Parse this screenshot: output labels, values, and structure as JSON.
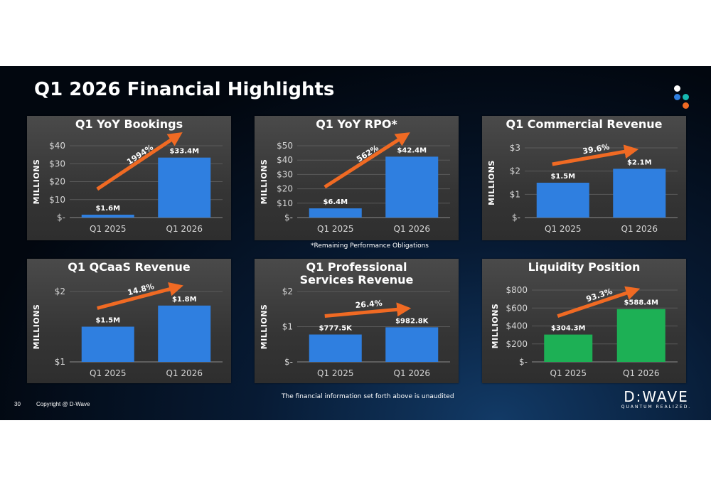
{
  "slide": {
    "title": "Q1 2026 Financial Highlights",
    "rpo_footnote": "*Remaining Performance Obligations",
    "unaudited_note": "The financial information set forth above is unaudited",
    "page_number": "30",
    "copyright": "Copyright @ D-Wave",
    "logo_text": "D:WAVE",
    "logo_tagline": "QUANTUM REALIZED.",
    "dot_colors": [
      "#ffffff",
      "#2f7fe0",
      "#16b8b0",
      "#f06a23"
    ],
    "blue": "#2f7fe0",
    "green": "#1db055",
    "arrow": "#f06a23"
  },
  "chart_data": [
    {
      "type": "bar",
      "title": "Q1 YoY Bookings",
      "ylabel": "MILLIONS",
      "categories": [
        "Q1 2025",
        "Q1 2026"
      ],
      "values": [
        1.6,
        33.4
      ],
      "data_labels": [
        "$1.6M",
        "$33.4M"
      ],
      "ylim": [
        0,
        40
      ],
      "yticks": [
        0,
        10,
        20,
        30,
        40
      ],
      "ytick_labels": [
        "$-",
        "$10",
        "$20",
        "$30",
        "$40"
      ],
      "growth_label": "1994%",
      "bar_color": "#2f7fe0"
    },
    {
      "type": "bar",
      "title": "Q1 YoY RPO*",
      "ylabel": "MILLIONS",
      "categories": [
        "Q1 2025",
        "Q1 2026"
      ],
      "values": [
        6.4,
        42.4
      ],
      "data_labels": [
        "$6.4M",
        "$42.4M"
      ],
      "ylim": [
        0,
        50
      ],
      "yticks": [
        0,
        10,
        20,
        30,
        40,
        50
      ],
      "ytick_labels": [
        "$-",
        "$10",
        "$20",
        "$30",
        "$40",
        "$50"
      ],
      "growth_label": "562%",
      "bar_color": "#2f7fe0"
    },
    {
      "type": "bar",
      "title": "Q1 Commercial Revenue",
      "ylabel": "MILLIONS",
      "categories": [
        "Q1 2025",
        "Q1 2026"
      ],
      "values": [
        1.5,
        2.1
      ],
      "data_labels": [
        "$1.5M",
        "$2.1M"
      ],
      "ylim": [
        0,
        3
      ],
      "yticks": [
        0,
        1,
        2,
        3
      ],
      "ytick_labels": [
        "$-",
        "$1",
        "$2",
        "$3"
      ],
      "growth_label": "39.6%",
      "bar_color": "#2f7fe0"
    },
    {
      "type": "bar",
      "title": "Q1 QCaaS Revenue",
      "ylabel": "MILLIONS",
      "categories": [
        "Q1 2025",
        "Q1 2026"
      ],
      "values": [
        1.5,
        1.8
      ],
      "data_labels": [
        "$1.5M",
        "$1.8M"
      ],
      "ylim": [
        1,
        2
      ],
      "yticks": [
        1,
        2
      ],
      "ytick_labels": [
        "$1",
        "$2"
      ],
      "growth_label": "14.8%",
      "bar_color": "#2f7fe0"
    },
    {
      "type": "bar",
      "title": "Q1 Professional Services Revenue",
      "ylabel": "MILLIONS",
      "categories": [
        "Q1 2025",
        "Q1 2026"
      ],
      "values": [
        0.7775,
        0.9828
      ],
      "data_labels": [
        "$777.5K",
        "$982.8K"
      ],
      "ylim": [
        0,
        2
      ],
      "yticks": [
        0,
        1,
        2
      ],
      "ytick_labels": [
        "$-",
        "$1",
        "$2"
      ],
      "growth_label": "26.4%",
      "bar_color": "#2f7fe0"
    },
    {
      "type": "bar",
      "title": "Liquidity Position",
      "ylabel": "MILLIONS",
      "categories": [
        "Q1 2025",
        "Q1 2026"
      ],
      "values": [
        304.3,
        588.4
      ],
      "data_labels": [
        "$304.3M",
        "$588.4M"
      ],
      "ylim": [
        0,
        800
      ],
      "yticks": [
        0,
        200,
        400,
        600,
        800
      ],
      "ytick_labels": [
        "$-",
        "$200",
        "$400",
        "$600",
        "$800"
      ],
      "growth_label": "93.3%",
      "bar_color": "#1db055"
    }
  ]
}
